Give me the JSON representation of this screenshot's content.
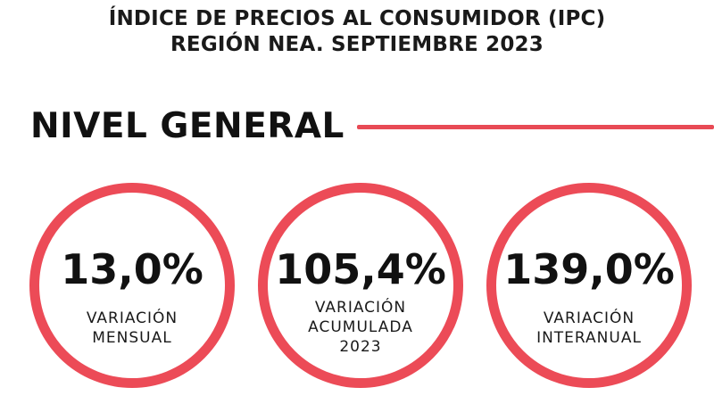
{
  "header": {
    "title_line1": "ÍNDICE DE PRECIOS AL CONSUMIDOR (IPC)",
    "title_line2": "REGIÓN NEA. SEPTIEMBRE 2023"
  },
  "section": {
    "heading": "NIVEL GENERAL"
  },
  "metrics": [
    {
      "value": "13,0%",
      "label_lines": [
        "VARIACIÓN",
        "MENSUAL"
      ]
    },
    {
      "value": "105,4%",
      "label_lines": [
        "VARIACIÓN",
        "ACUMULADA",
        "2023"
      ]
    },
    {
      "value": "139,0%",
      "label_lines": [
        "VARIACIÓN",
        "INTERANUAL"
      ]
    }
  ],
  "colors": {
    "accent": "#ec4b57",
    "text": "#111111",
    "background": "#ffffff"
  }
}
